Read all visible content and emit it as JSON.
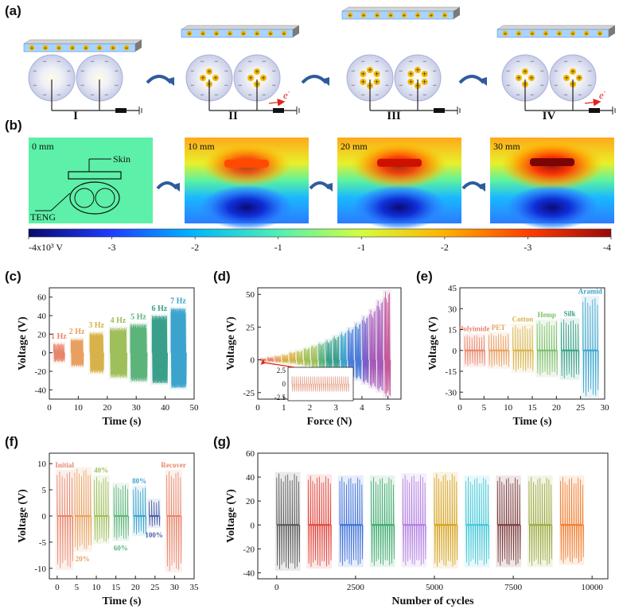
{
  "panel_labels": {
    "a": "(a)",
    "b": "(b)",
    "c": "(c)",
    "d": "(d)",
    "e": "(e)",
    "f": "(f)",
    "g": "(g)"
  },
  "panel_a": {
    "stages": [
      "I",
      "II",
      "III",
      "IV"
    ],
    "electron_label": "e",
    "electron_sup": "-",
    "plus_sign": "+",
    "minus_sign": "−"
  },
  "panel_b": {
    "distances": [
      "0 mm",
      "10 mm",
      "20 mm",
      "30 mm"
    ],
    "skin_label": "Skin",
    "teng_label": "TENG",
    "colorbar": {
      "tick_labels": [
        "-4x10³ V",
        "-3",
        "-2",
        "-1",
        "-1",
        "-2",
        "-3",
        "-4"
      ],
      "colors": [
        "#0a0a6e",
        "#1e3cff",
        "#00b4ff",
        "#50f0b4",
        "#d2ff3c",
        "#ffb400",
        "#ff3c00",
        "#9a0a0a"
      ]
    }
  },
  "chart_data": [
    {
      "id": "c",
      "type": "line",
      "title": "",
      "xlabel": "Time (s)",
      "ylabel": "Voltage (V)",
      "xlim": [
        0,
        50
      ],
      "ylim": [
        -50,
        70
      ],
      "xticks": [
        0,
        10,
        20,
        30,
        40,
        50
      ],
      "yticks": [
        -40,
        -20,
        0,
        20,
        40,
        60
      ],
      "series": [
        {
          "name": "1 Hz",
          "x_range": [
            1.5,
            5
          ],
          "max": 10,
          "min": -10,
          "color": "#e8856a",
          "cycles": 4
        },
        {
          "name": "2 Hz",
          "x_range": [
            7.5,
            11.5
          ],
          "max": 15,
          "min": -15,
          "color": "#e8a060",
          "cycles": 7
        },
        {
          "name": "3 Hz",
          "x_range": [
            14,
            18.5
          ],
          "max": 22,
          "min": -22,
          "color": "#d7b24a",
          "cycles": 10
        },
        {
          "name": "4 Hz",
          "x_range": [
            21,
            26.5
          ],
          "max": 27,
          "min": -27,
          "color": "#9fbf5a",
          "cycles": 13
        },
        {
          "name": "5 Hz",
          "x_range": [
            28,
            33.5
          ],
          "max": 31,
          "min": -31,
          "color": "#5db47a",
          "cycles": 16
        },
        {
          "name": "6 Hz",
          "x_range": [
            35.5,
            40.5
          ],
          "max": 40,
          "min": -33,
          "color": "#3a9f8a",
          "cycles": 18
        },
        {
          "name": "7 Hz",
          "x_range": [
            42,
            47
          ],
          "max": 48,
          "min": -38,
          "color": "#3ba3cc",
          "cycles": 20
        }
      ]
    },
    {
      "id": "d",
      "type": "line",
      "title": "",
      "xlabel": "Force (N)",
      "ylabel": "Voltage (V)",
      "xlim": [
        0,
        5.5
      ],
      "ylim": [
        -30,
        55
      ],
      "xticks": [
        0,
        1,
        2,
        3,
        4,
        5
      ],
      "yticks": [
        -25,
        0,
        25,
        50
      ],
      "series_x": [
        0.1,
        0.38,
        0.66,
        0.94,
        1.22,
        1.5,
        1.78,
        2.06,
        2.34,
        2.62,
        2.9,
        3.18,
        3.46,
        3.74,
        4.02,
        4.3,
        4.58,
        4.86
      ],
      "series_max": [
        1,
        2,
        3,
        4,
        6,
        7,
        9,
        11,
        13,
        15,
        18,
        21,
        24,
        28,
        33,
        38,
        45,
        52
      ],
      "series_min": [
        -1,
        -1.5,
        -2,
        -2.5,
        -3,
        -4,
        -5,
        -6,
        -7,
        -8,
        -9,
        -11,
        -13,
        -15,
        -18,
        -21,
        -24,
        -28
      ],
      "colors": [
        "#e8856a",
        "#e8a060",
        "#d7b24a",
        "#b9bf4f",
        "#9fbf5a",
        "#5db47a",
        "#3a9f8a",
        "#3ba3cc",
        "#4a7bd8",
        "#7a5fc8",
        "#a65ab8",
        "#c45a9b"
      ],
      "inset": {
        "yticks": [
          2.5,
          0,
          -2.5
        ],
        "ylim": [
          -2.5,
          2.5
        ],
        "color": "#e59b84"
      }
    },
    {
      "id": "e",
      "type": "line",
      "title": "",
      "xlabel": "Time (s)",
      "ylabel": "Voltage (V)",
      "xlim": [
        0,
        30
      ],
      "ylim": [
        -35,
        45
      ],
      "xticks": [
        0,
        5,
        10,
        15,
        20,
        25,
        30
      ],
      "yticks": [
        -30,
        -15,
        0,
        15,
        30,
        45
      ],
      "series": [
        {
          "name": "Polyimide",
          "x_range": [
            1,
            5
          ],
          "max": 11,
          "min": -11,
          "color": "#e8856a"
        },
        {
          "name": "PET",
          "x_range": [
            6,
            10
          ],
          "max": 12,
          "min": -12,
          "color": "#e8a060"
        },
        {
          "name": "Cotton",
          "x_range": [
            11,
            15
          ],
          "max": 18,
          "min": -15,
          "color": "#d7b24a"
        },
        {
          "name": "Hemp",
          "x_range": [
            16,
            20
          ],
          "max": 21,
          "min": -18,
          "color": "#7cbf6a"
        },
        {
          "name": "Silk",
          "x_range": [
            21,
            24.5
          ],
          "max": 22,
          "min": -20,
          "color": "#3a9f8a"
        },
        {
          "name": "Aramid",
          "x_range": [
            25.5,
            28.5
          ],
          "max": 38,
          "min": -33,
          "color": "#3ba3cc"
        }
      ]
    },
    {
      "id": "f",
      "type": "line",
      "title": "",
      "xlabel": "Time (s)",
      "ylabel": "Voltage (V)",
      "xlim": [
        -2,
        35
      ],
      "ylim": [
        -12,
        12
      ],
      "xticks": [
        0,
        5,
        10,
        15,
        20,
        25,
        30,
        35
      ],
      "yticks": [
        -10,
        -5,
        0,
        5,
        10
      ],
      "series": [
        {
          "name": "Initial",
          "x_range": [
            0,
            3.8
          ],
          "max": 8.5,
          "min": -10,
          "color": "#e8856a"
        },
        {
          "name": "20%",
          "x_range": [
            4.5,
            8.5
          ],
          "max": 9,
          "min": -6.5,
          "color": "#e8a060"
        },
        {
          "name": "40%",
          "x_range": [
            9.5,
            13
          ],
          "max": 7.5,
          "min": -5,
          "color": "#9fbf5a"
        },
        {
          "name": "60%",
          "x_range": [
            14.5,
            18
          ],
          "max": 6,
          "min": -4.5,
          "color": "#5db47a"
        },
        {
          "name": "80%",
          "x_range": [
            19.5,
            22.5
          ],
          "max": 5.5,
          "min": -3.5,
          "color": "#3ba3cc"
        },
        {
          "name": "100%",
          "x_range": [
            23.5,
            26
          ],
          "max": 3,
          "min": -2,
          "color": "#4a5fa8"
        },
        {
          "name": "Recover",
          "x_range": [
            28,
            31.5
          ],
          "max": 8.5,
          "min": -10.5,
          "color": "#e8856a"
        }
      ]
    },
    {
      "id": "g",
      "type": "line",
      "title": "",
      "xlabel": "Number of cycles",
      "ylabel": "Voltage (V)",
      "xlim": [
        -600,
        10500
      ],
      "ylim": [
        -45,
        60
      ],
      "xticks": [
        0,
        2500,
        5000,
        7500,
        10000
      ],
      "yticks": [
        -40,
        -20,
        0,
        20,
        40,
        60
      ],
      "blocks": [
        {
          "x_range": [
            0,
            700
          ],
          "max": 43,
          "min": -37,
          "color": "#555555"
        },
        {
          "x_range": [
            1000,
            1700
          ],
          "max": 41,
          "min": -35,
          "color": "#e0433a"
        },
        {
          "x_range": [
            2000,
            2700
          ],
          "max": 40,
          "min": -34,
          "color": "#3a6fd8"
        },
        {
          "x_range": [
            3000,
            3700
          ],
          "max": 40,
          "min": -34,
          "color": "#3aa86a"
        },
        {
          "x_range": [
            4000,
            4700
          ],
          "max": 42,
          "min": -34,
          "color": "#b07ae0"
        },
        {
          "x_range": [
            5000,
            5700
          ],
          "max": 43,
          "min": -35,
          "color": "#d4a017"
        },
        {
          "x_range": [
            6000,
            6700
          ],
          "max": 40,
          "min": -34,
          "color": "#3ec7d8"
        },
        {
          "x_range": [
            7000,
            7700
          ],
          "max": 40,
          "min": -34,
          "color": "#7a3a3a"
        },
        {
          "x_range": [
            8000,
            8700
          ],
          "max": 40,
          "min": -34,
          "color": "#9aa83a"
        },
        {
          "x_range": [
            9000,
            9700
          ],
          "max": 40,
          "min": -32,
          "color": "#f07a2a"
        }
      ]
    }
  ]
}
